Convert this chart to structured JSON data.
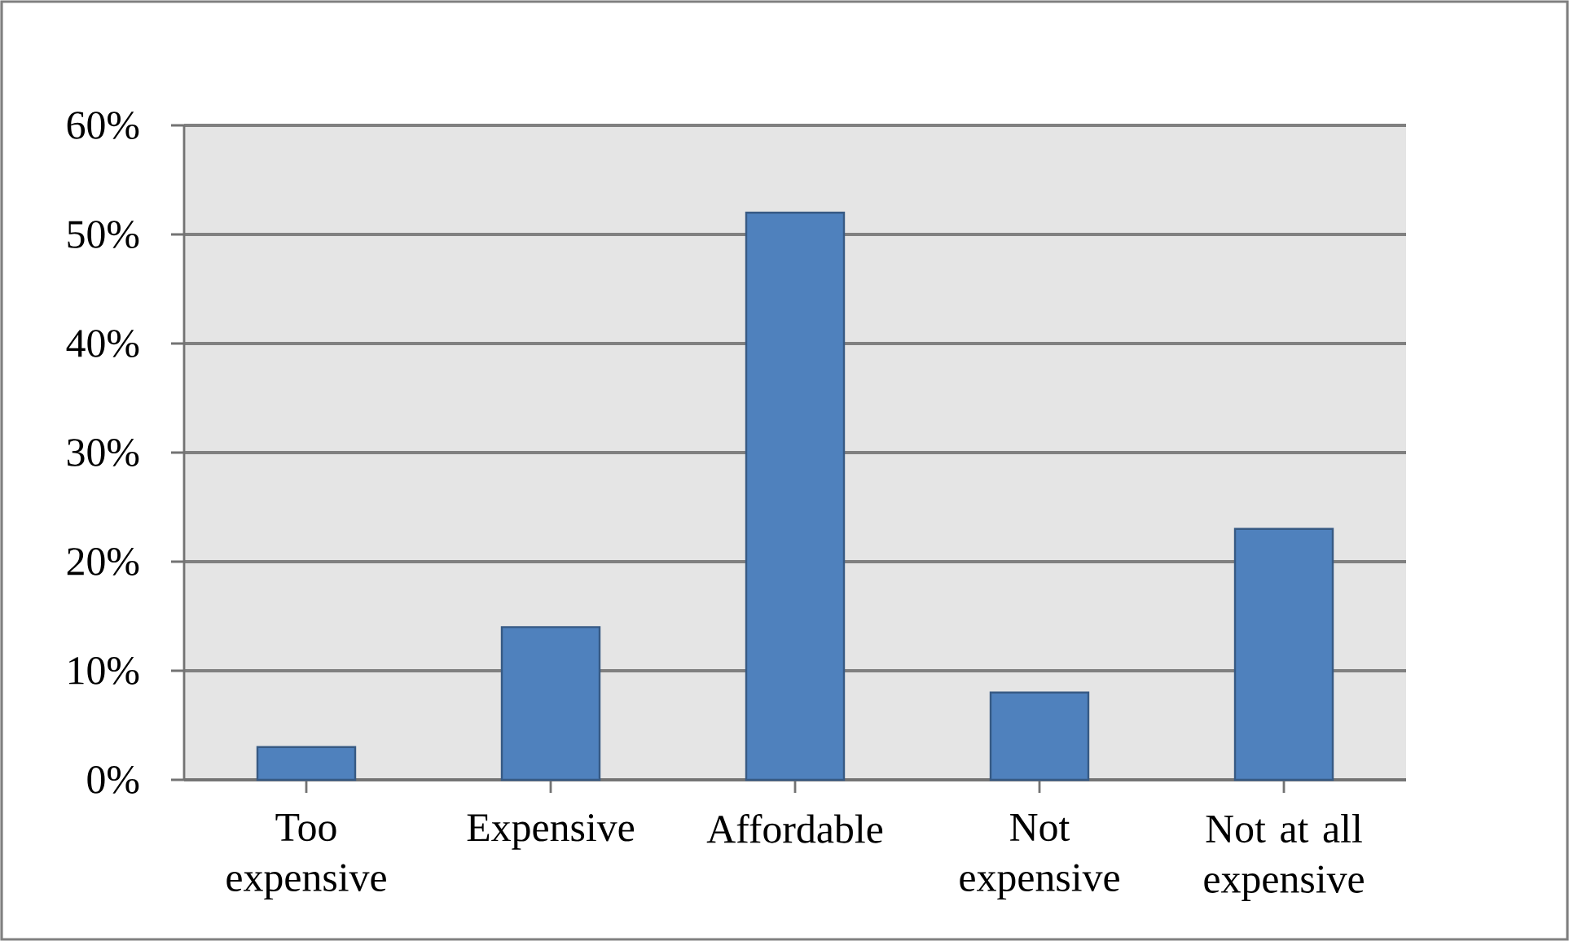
{
  "chart_data": {
    "type": "bar",
    "categories": [
      "Too expensive",
      "Expensive",
      "Affordable",
      "Not expensive",
      "Not at all expensive"
    ],
    "values": [
      3,
      14,
      52,
      8,
      23
    ],
    "color": "#4f81bd",
    "ylim": [
      0,
      60
    ],
    "yticks": [
      {
        "value": 0,
        "label": "0%"
      },
      {
        "value": 10,
        "label": "10%"
      },
      {
        "value": 20,
        "label": "20%"
      },
      {
        "value": 30,
        "label": "30%"
      },
      {
        "value": 40,
        "label": "40%"
      },
      {
        "value": 50,
        "label": "50%"
      },
      {
        "value": 60,
        "label": "60%"
      }
    ],
    "grid": "y"
  }
}
